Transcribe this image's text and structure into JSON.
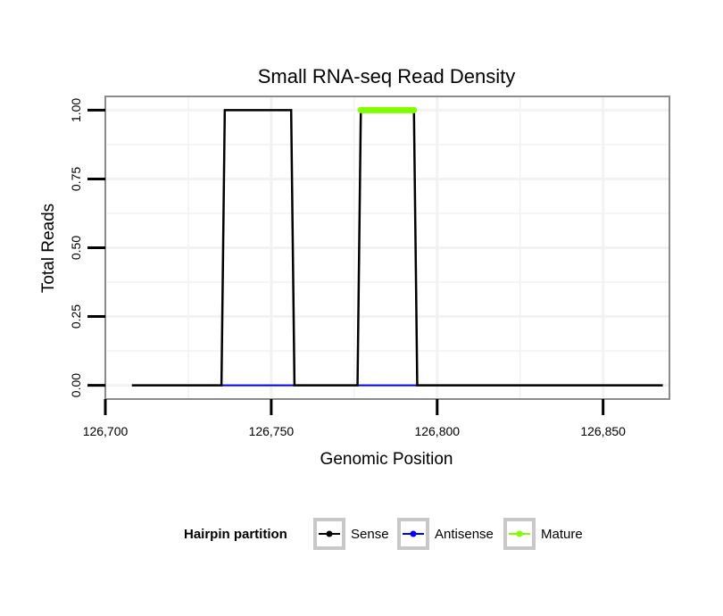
{
  "chart_data": {
    "type": "line",
    "title": "Small RNA-seq Read Density",
    "xlabel": "Genomic Position",
    "ylabel": "Total Reads",
    "xlim": [
      126700,
      126870
    ],
    "ylim": [
      -0.05,
      1.05
    ],
    "x_ticks": [
      126700,
      126750,
      126800,
      126850
    ],
    "x_tick_labels": [
      "126,700",
      "126,750",
      "126,800",
      "126,850"
    ],
    "y_ticks": [
      0,
      0.25,
      0.5,
      0.75,
      1
    ],
    "y_tick_labels": [
      "0.00",
      "0.25",
      "0.50",
      "0.75",
      "1.00"
    ],
    "grid": true,
    "legend": {
      "position": "bottom",
      "title": "Hairpin partition",
      "entries": [
        {
          "label": "Sense",
          "color": "#000000"
        },
        {
          "label": "Antisense",
          "color": "#0000ff"
        },
        {
          "label": "Mature",
          "color": "#7fff00"
        }
      ]
    },
    "series": [
      {
        "name": "Sense",
        "color": "#000000",
        "x": [
          126708,
          126735,
          126736,
          126756,
          126757,
          126776,
          126777,
          126793,
          126794,
          126868
        ],
        "y": [
          0,
          0,
          1,
          1,
          0,
          0,
          1,
          1,
          0,
          0
        ]
      },
      {
        "name": "Antisense",
        "color": "#0000ff",
        "x": [
          126735,
          126757,
          126776,
          126794
        ],
        "y": [
          0,
          0,
          0,
          0
        ],
        "segments": [
          [
            0,
            1
          ],
          [
            2,
            3
          ]
        ]
      },
      {
        "name": "Mature",
        "color": "#7fff00",
        "x": [
          126777,
          126793
        ],
        "y": [
          1,
          1
        ]
      }
    ]
  }
}
